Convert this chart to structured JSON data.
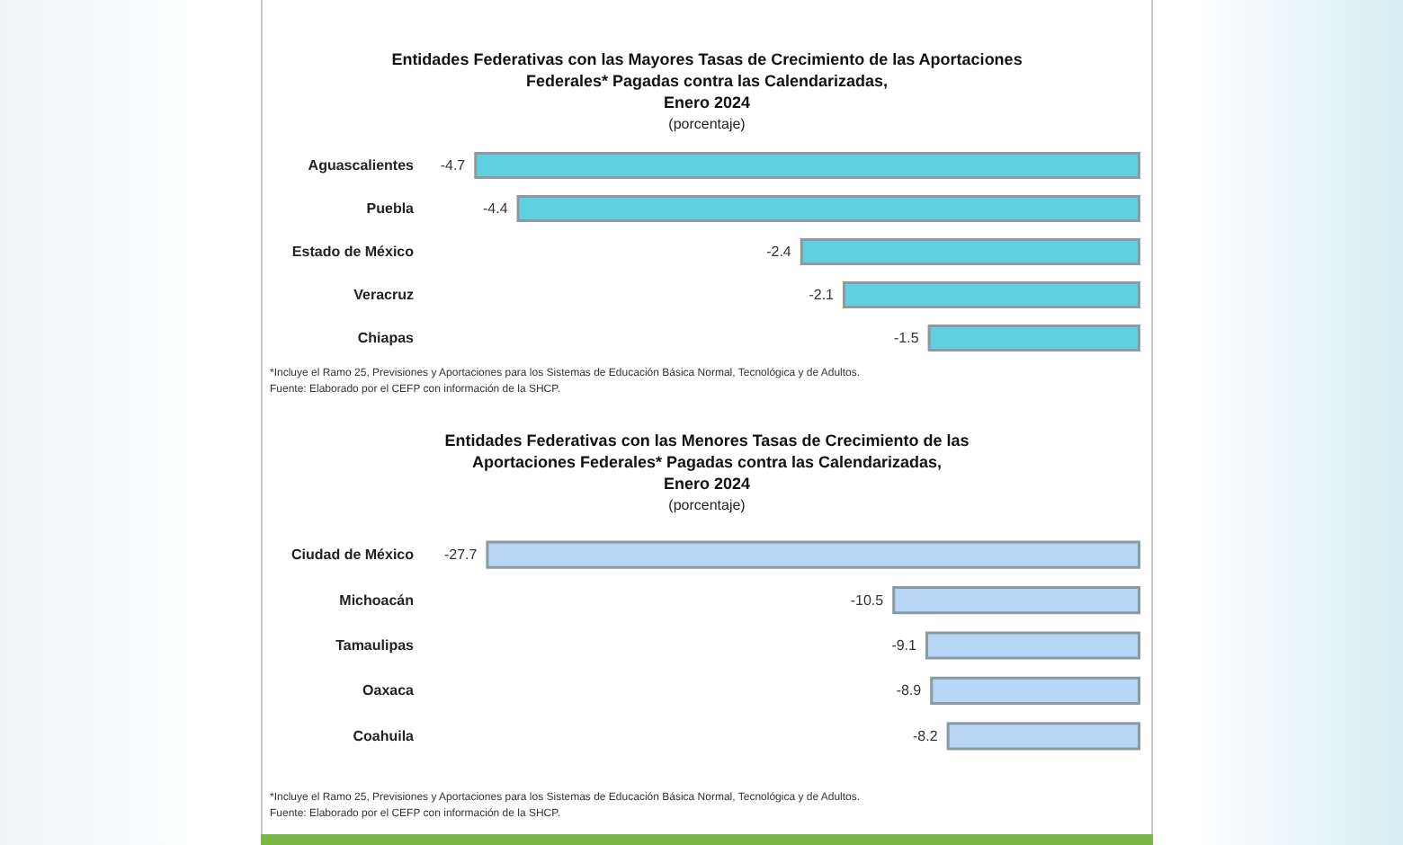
{
  "chart_data": [
    {
      "type": "bar",
      "orientation": "horizontal",
      "title": "Entidades Federativas con las Mayores Tasas de Crecimiento de las Aportaciones\nFederales* Pagadas contra las Calendarizadas,\nEnero 2024",
      "subtitle": "(porcentaje)",
      "categories": [
        "Aguascalientes",
        "Puebla",
        "Estado de México",
        "Veracruz",
        "Chiapas"
      ],
      "values": [
        -4.7,
        -4.4,
        -2.4,
        -2.1,
        -1.5
      ],
      "color": "#5fd0e0",
      "data_labels": true,
      "annotations": [
        "*Incluye el Ramo 25, Previsiones y Aportaciones para los Sistemas de Educación Básica Normal, Tecnológica y de Adultos.",
        "Fuente: Elaborado por el CEFP con información de la SHCP."
      ]
    },
    {
      "type": "bar",
      "orientation": "horizontal",
      "title": "Entidades Federativas con las Menores Tasas de Crecimiento de las\nAportaciones Federales* Pagadas contra las Calendarizadas,\nEnero 2024",
      "subtitle": "(porcentaje)",
      "categories": [
        "Ciudad de México",
        "Michoacán",
        "Tamaulipas",
        "Oaxaca",
        "Coahuila"
      ],
      "values": [
        -27.7,
        -10.5,
        -9.1,
        -8.9,
        -8.2
      ],
      "color": "#b7d5f5",
      "data_labels": true,
      "annotations": [
        "*Incluye el Ramo 25, Previsiones y Aportaciones para los Sistemas de Educación Básica Normal, Tecnológica y de Adultos.",
        "Fuente: Elaborado por el CEFP con información de la SHCP."
      ]
    }
  ]
}
